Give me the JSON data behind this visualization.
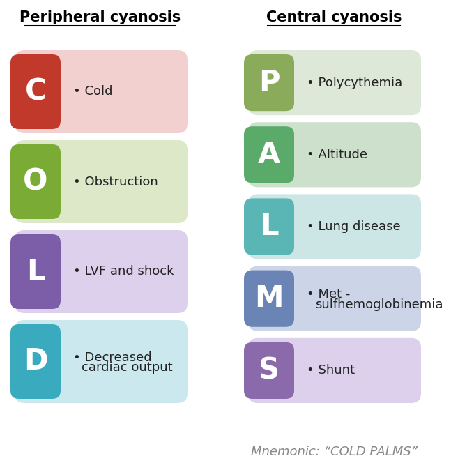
{
  "bg_color": "#ffffff",
  "title_left": "Peripheral cyanosis",
  "title_right": "Central cyanosis",
  "peripheral": [
    {
      "letter": "C",
      "text": "Cold",
      "letter_color": "#c0392b",
      "bg_color": "#f2d0d0"
    },
    {
      "letter": "O",
      "text": "Obstruction",
      "letter_color": "#7aab35",
      "bg_color": "#dde8c8"
    },
    {
      "letter": "L",
      "text": "LVF and shock",
      "letter_color": "#7b5ea7",
      "bg_color": "#ddd0ec"
    },
    {
      "letter": "D",
      "text": "Decreased\ncardiac output",
      "letter_color": "#3aabbf",
      "bg_color": "#cce8ef"
    }
  ],
  "central": [
    {
      "letter": "P",
      "text": "Polycythemia",
      "letter_color": "#8aab5a",
      "bg_color": "#dde8d8"
    },
    {
      "letter": "A",
      "text": "Altitude",
      "letter_color": "#5aaa6a",
      "bg_color": "#cce0cc"
    },
    {
      "letter": "L",
      "text": "Lung disease",
      "letter_color": "#5ab5b5",
      "bg_color": "#cce5e5"
    },
    {
      "letter": "M",
      "text": "Met -\nsulfhemoglobinemia",
      "letter_color": "#6a85b5",
      "bg_color": "#ccd5e8"
    },
    {
      "letter": "S",
      "text": "Shunt",
      "letter_color": "#8a6aaa",
      "bg_color": "#ddd0ec"
    }
  ],
  "mnemonic": "Mnemonic: “COLD PALMS”"
}
